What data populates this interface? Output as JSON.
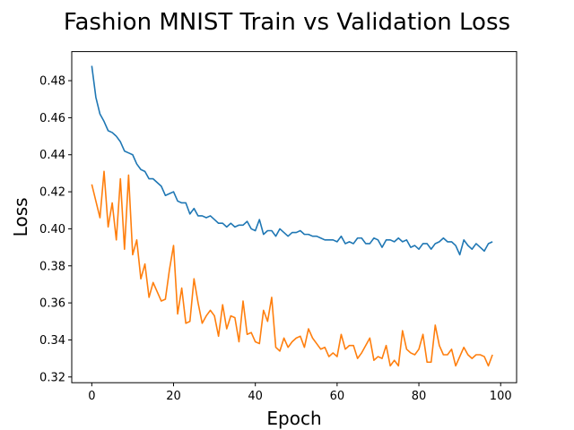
{
  "chart_data": {
    "type": "line",
    "title": "Fashion MNIST Train vs Validation Loss",
    "xlabel": "Epoch",
    "ylabel": "Loss",
    "xlim": [
      -4.9,
      103.9
    ],
    "ylim": [
      0.3169,
      0.4957
    ],
    "xticks": [
      0,
      20,
      40,
      60,
      80,
      100
    ],
    "yticks": [
      0.32,
      0.34,
      0.36,
      0.38,
      0.4,
      0.42,
      0.44,
      0.46,
      0.48
    ],
    "ytick_labels": [
      "0.32",
      "0.34",
      "0.36",
      "0.38",
      "0.40",
      "0.42",
      "0.44",
      "0.46",
      "0.48"
    ],
    "grid": false,
    "legend": false,
    "x": [
      0,
      1,
      2,
      3,
      4,
      5,
      6,
      7,
      8,
      9,
      10,
      11,
      12,
      13,
      14,
      15,
      16,
      17,
      18,
      19,
      20,
      21,
      22,
      23,
      24,
      25,
      26,
      27,
      28,
      29,
      30,
      31,
      32,
      33,
      34,
      35,
      36,
      37,
      38,
      39,
      40,
      41,
      42,
      43,
      44,
      45,
      46,
      47,
      48,
      49,
      50,
      51,
      52,
      53,
      54,
      55,
      56,
      57,
      58,
      59,
      60,
      61,
      62,
      63,
      64,
      65,
      66,
      67,
      68,
      69,
      70,
      71,
      72,
      73,
      74,
      75,
      76,
      77,
      78,
      79,
      80,
      81,
      82,
      83,
      84,
      85,
      86,
      87,
      88,
      89,
      90,
      91,
      92,
      93,
      94,
      95,
      96,
      97,
      98
    ],
    "series": [
      {
        "color": "#1f77b4",
        "values": [
          0.488,
          0.471,
          0.462,
          0.458,
          0.453,
          0.452,
          0.45,
          0.447,
          0.442,
          0.441,
          0.44,
          0.435,
          0.432,
          0.431,
          0.427,
          0.427,
          0.425,
          0.423,
          0.418,
          0.419,
          0.42,
          0.415,
          0.414,
          0.414,
          0.408,
          0.411,
          0.407,
          0.407,
          0.406,
          0.407,
          0.405,
          0.403,
          0.403,
          0.401,
          0.403,
          0.401,
          0.402,
          0.402,
          0.404,
          0.4,
          0.399,
          0.405,
          0.397,
          0.399,
          0.399,
          0.396,
          0.4,
          0.398,
          0.396,
          0.398,
          0.398,
          0.399,
          0.397,
          0.397,
          0.396,
          0.396,
          0.395,
          0.394,
          0.394,
          0.394,
          0.393,
          0.396,
          0.392,
          0.393,
          0.392,
          0.395,
          0.395,
          0.392,
          0.392,
          0.395,
          0.394,
          0.39,
          0.394,
          0.394,
          0.393,
          0.395,
          0.393,
          0.394,
          0.39,
          0.391,
          0.389,
          0.392,
          0.392,
          0.389,
          0.392,
          0.393,
          0.395,
          0.393,
          0.393,
          0.391,
          0.386,
          0.394,
          0.391,
          0.389,
          0.392,
          0.39,
          0.388,
          0.392,
          0.393
        ]
      },
      {
        "color": "#ff7f0e",
        "values": [
          0.424,
          0.415,
          0.406,
          0.431,
          0.401,
          0.414,
          0.394,
          0.427,
          0.389,
          0.429,
          0.386,
          0.394,
          0.373,
          0.381,
          0.363,
          0.371,
          0.366,
          0.361,
          0.362,
          0.378,
          0.391,
          0.354,
          0.368,
          0.349,
          0.35,
          0.373,
          0.36,
          0.349,
          0.353,
          0.356,
          0.353,
          0.342,
          0.359,
          0.346,
          0.353,
          0.352,
          0.339,
          0.361,
          0.343,
          0.344,
          0.339,
          0.338,
          0.356,
          0.35,
          0.363,
          0.336,
          0.334,
          0.341,
          0.336,
          0.339,
          0.341,
          0.342,
          0.336,
          0.346,
          0.341,
          0.338,
          0.335,
          0.336,
          0.331,
          0.333,
          0.331,
          0.343,
          0.335,
          0.337,
          0.337,
          0.33,
          0.333,
          0.337,
          0.341,
          0.329,
          0.331,
          0.33,
          0.337,
          0.326,
          0.329,
          0.326,
          0.345,
          0.335,
          0.333,
          0.332,
          0.335,
          0.343,
          0.328,
          0.328,
          0.348,
          0.337,
          0.332,
          0.332,
          0.335,
          0.326,
          0.331,
          0.336,
          0.332,
          0.33,
          0.332,
          0.332,
          0.331,
          0.326,
          0.332
        ]
      }
    ]
  }
}
